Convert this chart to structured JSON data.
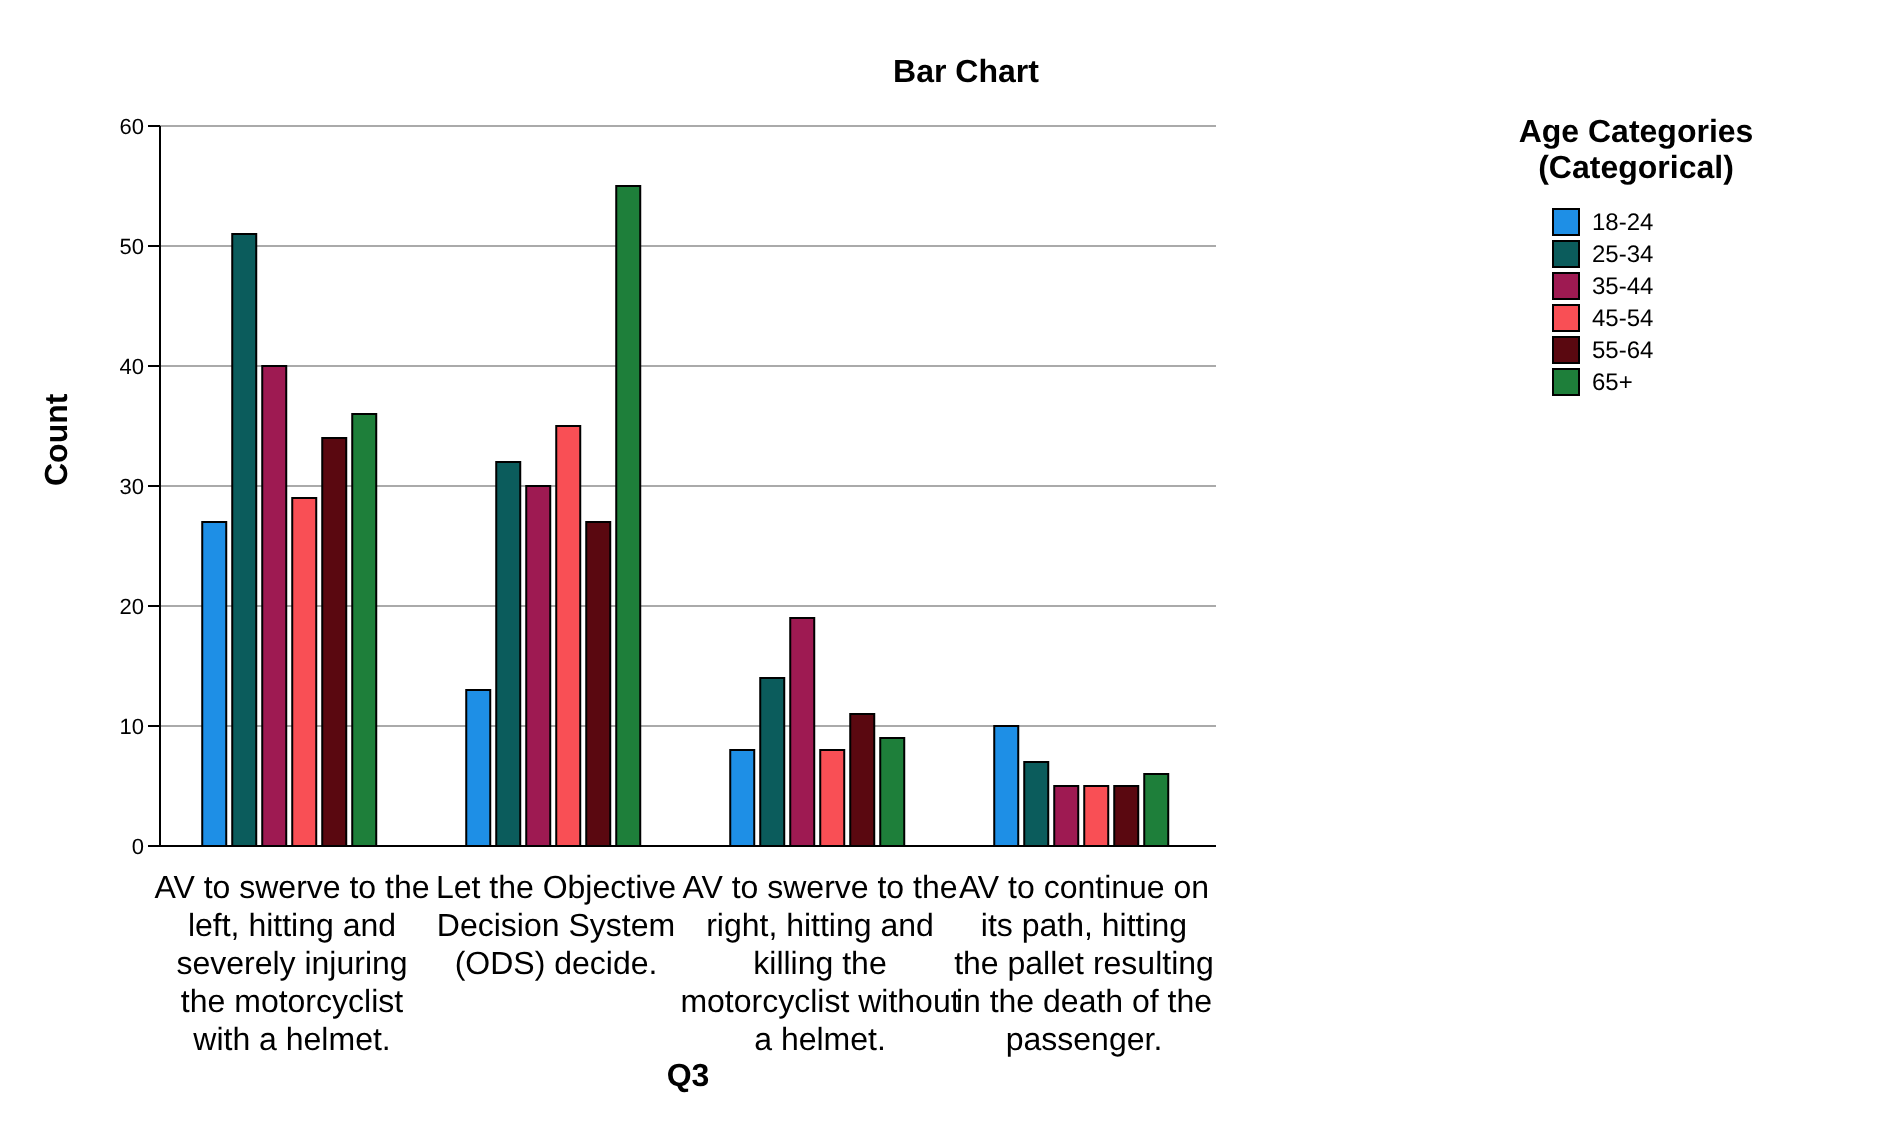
{
  "chart_data": {
    "type": "bar",
    "title": "Bar Chart",
    "xlabel": "Q3",
    "ylabel": "Count",
    "legend_title": "Age Categories (Categorical)",
    "categories": [
      "AV to swerve to the left, hitting and severely injuring the motorcyclist with a helmet.",
      "Let the Objective Decision System (ODS) decide.",
      "AV to swerve to the right, hitting and killing the motorcyclist without a helmet.",
      "AV to continue on its path, hitting the pallet resulting in the death of the passenger."
    ],
    "series": [
      {
        "name": "18-24",
        "color": "#1e8fe6",
        "values": [
          27,
          13,
          8,
          10
        ]
      },
      {
        "name": "25-34",
        "color": "#0b5c5c",
        "values": [
          51,
          32,
          14,
          7
        ]
      },
      {
        "name": "35-44",
        "color": "#9e1a52",
        "values": [
          40,
          30,
          19,
          5
        ]
      },
      {
        "name": "45-54",
        "color": "#f94f55",
        "values": [
          29,
          35,
          8,
          5
        ]
      },
      {
        "name": "55-64",
        "color": "#5a0810",
        "values": [
          34,
          27,
          11,
          5
        ]
      },
      {
        "name": "65+",
        "color": "#1e7f3a",
        "values": [
          36,
          55,
          9,
          6
        ]
      }
    ],
    "ylim": [
      0,
      60
    ],
    "yticks": [
      0,
      10,
      20,
      30,
      40,
      50,
      60
    ],
    "grid": "y",
    "legend": "top right"
  }
}
